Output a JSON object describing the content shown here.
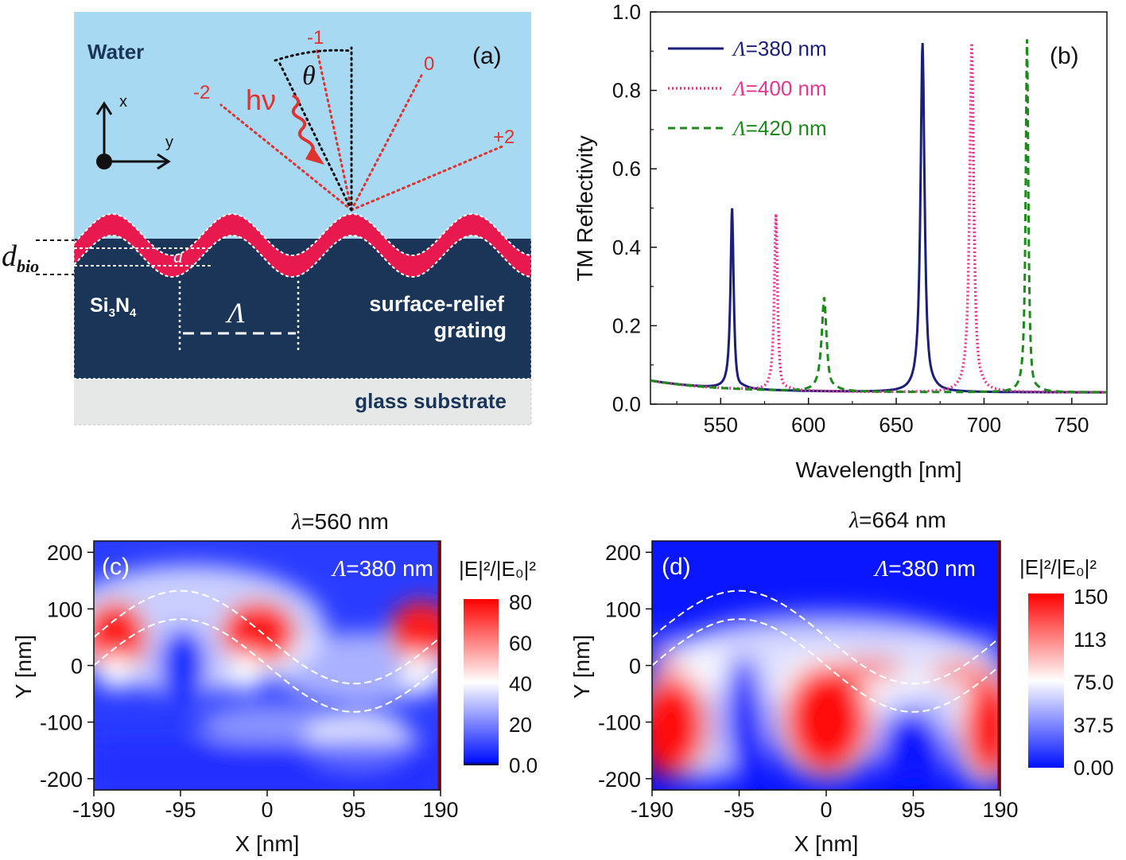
{
  "panel_a": {
    "label": "(a)",
    "water": "Water",
    "axis_x": "x",
    "axis_y": "y",
    "photon": "hν",
    "theta": "θ",
    "orders": [
      "-2",
      "-1",
      "0",
      "+2"
    ],
    "dbio_main": "d",
    "dbio_sub": "bio",
    "a_label": "a",
    "si_main": "Si",
    "si_sub1": "3",
    "si_mid": "N",
    "si_sub2": "4",
    "lambda_sym": "Λ",
    "grating_line1": "surface-relief",
    "grating_line2": "grating",
    "substrate": "glass substrate",
    "colors": {
      "water": "#a7d9f2",
      "si3n4": "#1a3558",
      "bio": "#e8194f",
      "glass": "#e6e8e8",
      "ray": "#e0322f"
    }
  },
  "panel_b": {
    "label": "(b)",
    "legend_sym": "Λ",
    "legend": [
      "=380 nm",
      "=400 nm",
      "=420 nm"
    ]
  },
  "panel_c": {
    "label": "(c)",
    "title_sym": "λ",
    "title_val": "=560 nm",
    "inset_sym": "Λ",
    "inset_val": "=380 nm",
    "xlabel": "X [nm]",
    "ylabel": "Y [nm]",
    "xticks": [
      "-190",
      "-95",
      "0",
      "95",
      "190"
    ],
    "yticks": [
      "200",
      "100",
      "0",
      "-100",
      "-200"
    ],
    "cbar_title": "|E|²/|E₀|²",
    "cbar_ticks": [
      "80",
      "60",
      "40",
      "20",
      "0.0"
    ]
  },
  "panel_d": {
    "label": "(d)",
    "title_sym": "λ",
    "title_val": "=664 nm",
    "inset_sym": "Λ",
    "inset_val": "=380 nm",
    "xlabel": "X [nm]",
    "ylabel": "Y [nm]",
    "xticks": [
      "-190",
      "-95",
      "0",
      "95",
      "190"
    ],
    "yticks": [
      "200",
      "100",
      "0",
      "-100",
      "-200"
    ],
    "cbar_title": "|E|²/|E₀|²",
    "cbar_ticks": [
      "150",
      "113",
      "75.0",
      "37.5",
      "0.00"
    ]
  },
  "chart_data": {
    "type": "line",
    "title": "",
    "xlabel": "Wavelength [nm]",
    "ylabel": "TM Reflectivity",
    "xlim": [
      510,
      770
    ],
    "ylim": [
      0.0,
      1.0
    ],
    "xticks": [
      "550",
      "600",
      "650",
      "700",
      "750"
    ],
    "yticks": [
      "0.0",
      "0.2",
      "0.4",
      "0.6",
      "0.8",
      "1.0"
    ],
    "legend_position": "top-left",
    "series": [
      {
        "name": "Λ=380 nm",
        "style": "solid",
        "color": "#1c1f7a",
        "baseline": 0.03,
        "peaks": [
          {
            "center": 556.5,
            "height": 0.49,
            "width": 1.1
          },
          {
            "center": 665.0,
            "height": 0.92,
            "width": 1.4
          }
        ]
      },
      {
        "name": "Λ=400 nm",
        "style": "dotted",
        "color": "#e8358e",
        "baseline": 0.03,
        "peaks": [
          {
            "center": 581.5,
            "height": 0.48,
            "width": 1.1
          },
          {
            "center": 693.0,
            "height": 0.92,
            "width": 1.4
          }
        ]
      },
      {
        "name": "Λ=420 nm",
        "style": "dashed",
        "color": "#1e8a1e",
        "baseline": 0.03,
        "peaks": [
          {
            "center": 609.0,
            "height": 0.27,
            "width": 1.8
          },
          {
            "center": 724.5,
            "height": 0.93,
            "width": 0.9
          }
        ]
      }
    ]
  }
}
